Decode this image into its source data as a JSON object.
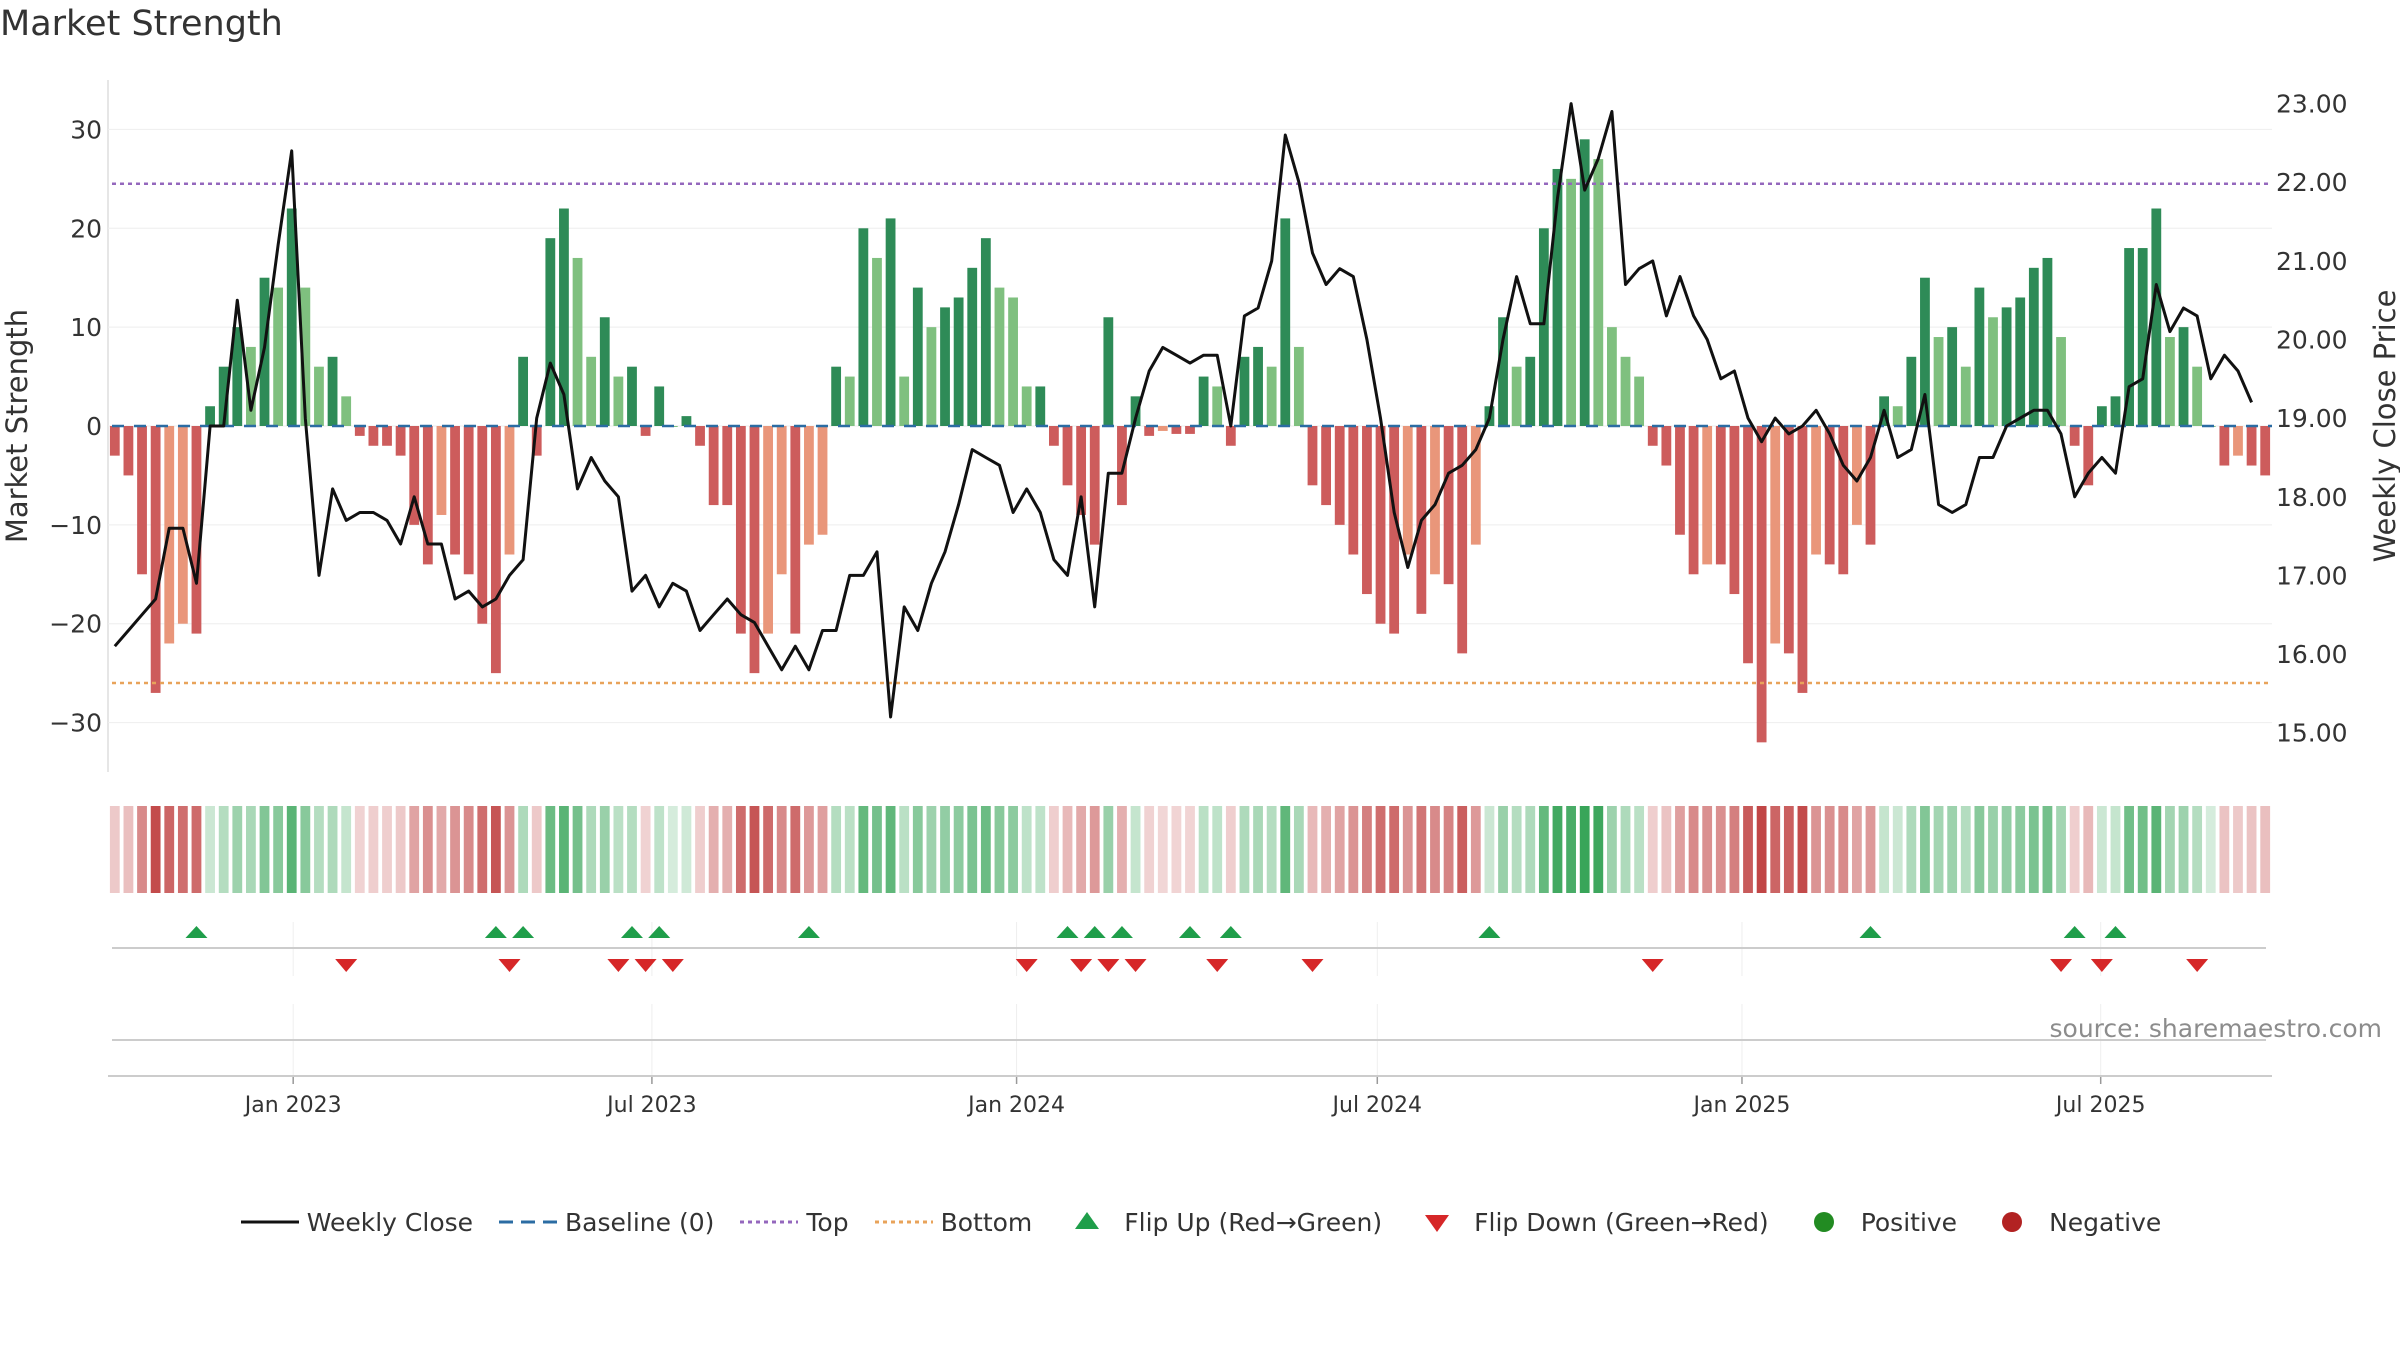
{
  "chart_data": {
    "type": "bar+line",
    "title": "Market Strength",
    "ylabel_left": "Market Strength",
    "ylabel_right": "Weekly Close Price",
    "ylim_left": [
      -35,
      35
    ],
    "yticks_left": [
      30,
      20,
      10,
      0,
      -10,
      -20,
      -30
    ],
    "ylim_right": [
      14.5,
      23.3
    ],
    "yticks_right": [
      "23.00",
      "22.00",
      "21.00",
      "20.00",
      "19.00",
      "18.00",
      "17.00",
      "16.00",
      "15.00"
    ],
    "top_level": 24.5,
    "bottom_level": -26,
    "x_start": "2022-10-03",
    "x_end": "2025-09-22",
    "xtick_labels": [
      {
        "date": "2023-01-01",
        "label": "Jan 2023"
      },
      {
        "date": "2023-07-01",
        "label": "Jul 2023"
      },
      {
        "date": "2024-01-01",
        "label": "Jan 2024"
      },
      {
        "date": "2024-07-01",
        "label": "Jul 2024"
      },
      {
        "date": "2025-01-01",
        "label": "Jan 2025"
      },
      {
        "date": "2025-07-01",
        "label": "Jul 2025"
      }
    ],
    "strength": [
      -3,
      -5,
      -15,
      -27,
      -22,
      -20,
      -21,
      2,
      6,
      10,
      8,
      15,
      14,
      22,
      14,
      6,
      7,
      3,
      -1,
      -2,
      -2,
      -3,
      -10,
      -14,
      -9,
      -13,
      -15,
      -20,
      -25,
      -13,
      7,
      -3,
      19,
      22,
      17,
      7,
      11,
      5,
      6,
      -1,
      4,
      0,
      1,
      -2,
      -8,
      -8,
      -21,
      -25,
      -21,
      -15,
      -21,
      -12,
      -11,
      6,
      5,
      20,
      17,
      21,
      5,
      14,
      10,
      12,
      13,
      16,
      19,
      14,
      13,
      4,
      4,
      -2,
      -6,
      -9,
      -12,
      11,
      -8,
      3,
      -1,
      -0.5,
      -0.8,
      -0.8,
      5,
      4,
      -2,
      7,
      8,
      6,
      21,
      8,
      -6,
      -8,
      -10,
      -13,
      -17,
      -20,
      -21,
      -13,
      -19,
      -15,
      -16,
      -23,
      -12,
      2,
      11,
      6,
      7,
      20,
      26,
      25,
      29,
      27,
      10,
      7,
      5,
      -2,
      -4,
      -11,
      -15,
      -14,
      -14,
      -17,
      -24,
      -32,
      -22,
      -23,
      -27,
      -13,
      -14,
      -15,
      -10,
      -12,
      3,
      2,
      7,
      15,
      9,
      10,
      6,
      14,
      11,
      12,
      13,
      16,
      17,
      9,
      -2,
      -6,
      2,
      3,
      18,
      18,
      22,
      9,
      10,
      6,
      0,
      -4,
      -3,
      -4,
      -5
    ],
    "weekly_close": [
      16.1,
      16.3,
      16.5,
      16.7,
      17.6,
      17.6,
      16.9,
      18.9,
      18.9,
      20.5,
      19.1,
      19.9,
      21.2,
      22.4,
      19.0,
      17.0,
      18.1,
      17.7,
      17.8,
      17.8,
      17.7,
      17.4,
      18.0,
      17.4,
      17.4,
      16.7,
      16.8,
      16.6,
      16.7,
      17.0,
      17.2,
      19.0,
      19.7,
      19.3,
      18.1,
      18.5,
      18.2,
      18.0,
      16.8,
      17.0,
      16.6,
      16.9,
      16.8,
      16.3,
      16.5,
      16.7,
      16.5,
      16.4,
      16.1,
      15.8,
      16.1,
      15.8,
      16.3,
      16.3,
      17.0,
      17.0,
      17.3,
      15.2,
      16.6,
      16.3,
      16.9,
      17.3,
      17.9,
      18.6,
      18.5,
      18.4,
      17.8,
      18.1,
      17.8,
      17.2,
      17.0,
      18.0,
      16.6,
      18.3,
      18.3,
      19.0,
      19.6,
      19.9,
      19.8,
      19.7,
      19.8,
      19.8,
      18.9,
      20.3,
      20.4,
      21.0,
      22.6,
      22.0,
      21.1,
      20.7,
      20.9,
      20.8,
      20.0,
      19.0,
      17.8,
      17.1,
      17.7,
      17.9,
      18.3,
      18.4,
      18.6,
      19.0,
      20.0,
      20.8,
      20.2,
      20.2,
      21.8,
      23.0,
      21.9,
      22.3,
      22.9,
      20.7,
      20.9,
      21.0,
      20.3,
      20.8,
      20.3,
      20.0,
      19.5,
      19.6,
      19.0,
      18.7,
      19.0,
      18.8,
      18.9,
      19.1,
      18.8,
      18.4,
      18.2,
      18.5,
      19.1,
      18.5,
      18.6,
      19.3,
      17.9,
      17.8,
      17.9,
      18.5,
      18.5,
      18.9,
      19.0,
      19.1,
      19.1,
      18.8,
      18.0,
      18.3,
      18.5,
      18.3,
      19.4,
      19.5,
      20.7,
      20.1,
      20.4,
      20.3,
      19.5,
      19.8,
      19.6,
      19.2
    ],
    "flip_up_weeks": [
      6,
      28,
      30,
      38,
      40,
      51,
      70,
      72,
      74,
      79,
      82,
      101,
      129,
      144,
      147
    ],
    "flip_down_weeks": [
      17,
      29,
      37,
      39,
      41,
      67,
      71,
      73,
      75,
      81,
      88,
      113,
      143,
      146,
      153
    ],
    "source_text": "source: sharemaestro.com"
  },
  "legend": [
    {
      "key": "weekly_close",
      "label": "Weekly Close"
    },
    {
      "key": "baseline",
      "label": "Baseline (0)"
    },
    {
      "key": "top",
      "label": "Top"
    },
    {
      "key": "bottom",
      "label": "Bottom"
    },
    {
      "key": "flip_up",
      "label": "Flip Up (Red→Green)"
    },
    {
      "key": "flip_down",
      "label": "Flip Down (Green→Red)"
    },
    {
      "key": "positive",
      "label": "Positive"
    },
    {
      "key": "negative",
      "label": "Negative"
    }
  ],
  "colors": {
    "weekly_close": "#111111",
    "baseline": "#2b6ca3",
    "top": "#9467bd",
    "bottom": "#e8a35a",
    "flip_up": "#1f9e4a",
    "flip_down": "#d62728",
    "positive": "#228b22",
    "negative": "#b22222",
    "bar_pos_dark": "#2e8b57",
    "bar_pos_light": "#7fc07f",
    "bar_neg_dark": "#cd5c5c",
    "bar_neg_light": "#e9967a"
  }
}
